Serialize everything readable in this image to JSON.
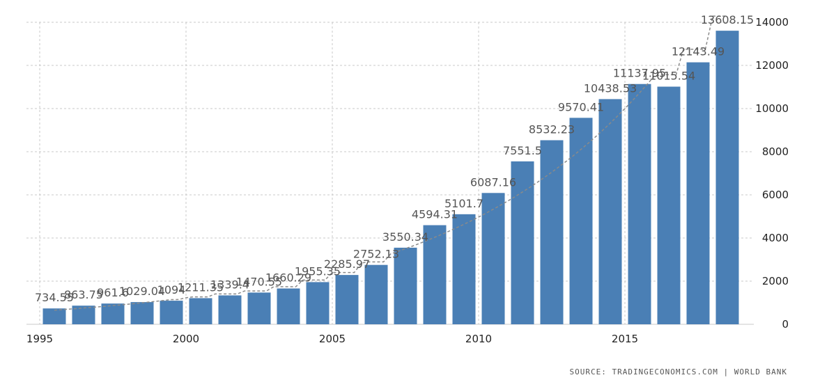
{
  "chart_data": {
    "type": "bar",
    "categories": [
      "1995",
      "1996",
      "1997",
      "1998",
      "1999",
      "2000",
      "2001",
      "2002",
      "2003",
      "2004",
      "2005",
      "2006",
      "2007",
      "2008",
      "2009",
      "2010",
      "2011",
      "2012",
      "2013",
      "2014",
      "2015",
      "2016",
      "2017",
      "2018"
    ],
    "values": [
      734.55,
      863.75,
      961.6,
      1029.04,
      1094,
      1211.35,
      1339.4,
      1470.55,
      1660.29,
      1955.35,
      2285.97,
      2752.13,
      3550.34,
      4594.31,
      5101.7,
      6087.16,
      7551.5,
      8532.23,
      9570.41,
      10438.53,
      11137.95,
      11015.54,
      12143.49,
      13608.15
    ],
    "data_labels": [
      "734.55",
      "863.75",
      "961.6",
      "1029.04",
      "1094",
      "1211.35",
      "1339.4",
      "1470.55",
      "1660.29",
      "1955.35",
      "2285.97",
      "2752.13",
      "3550.34",
      "4594.31",
      "5101.7",
      "6087.16",
      "7551.5",
      "8532.23",
      "9570.41",
      "10438.53",
      "11137.95",
      "11015.54",
      "12143.49",
      "13608.15"
    ],
    "xticks": [
      "1995",
      "2000",
      "2005",
      "2010",
      "2015"
    ],
    "yticks": [
      "0",
      "2000",
      "4000",
      "6000",
      "8000",
      "10000",
      "12000",
      "14000"
    ],
    "ylim": [
      0,
      14000
    ],
    "yaxis_position": "right",
    "grid": true,
    "trendline": true,
    "colors": {
      "bar": "#4a7fb5",
      "trend": "#8a8a8a"
    },
    "title": "",
    "xlabel": "",
    "ylabel": ""
  },
  "source": "SOURCE: TRADINGECONOMICS.COM | WORLD BANK"
}
